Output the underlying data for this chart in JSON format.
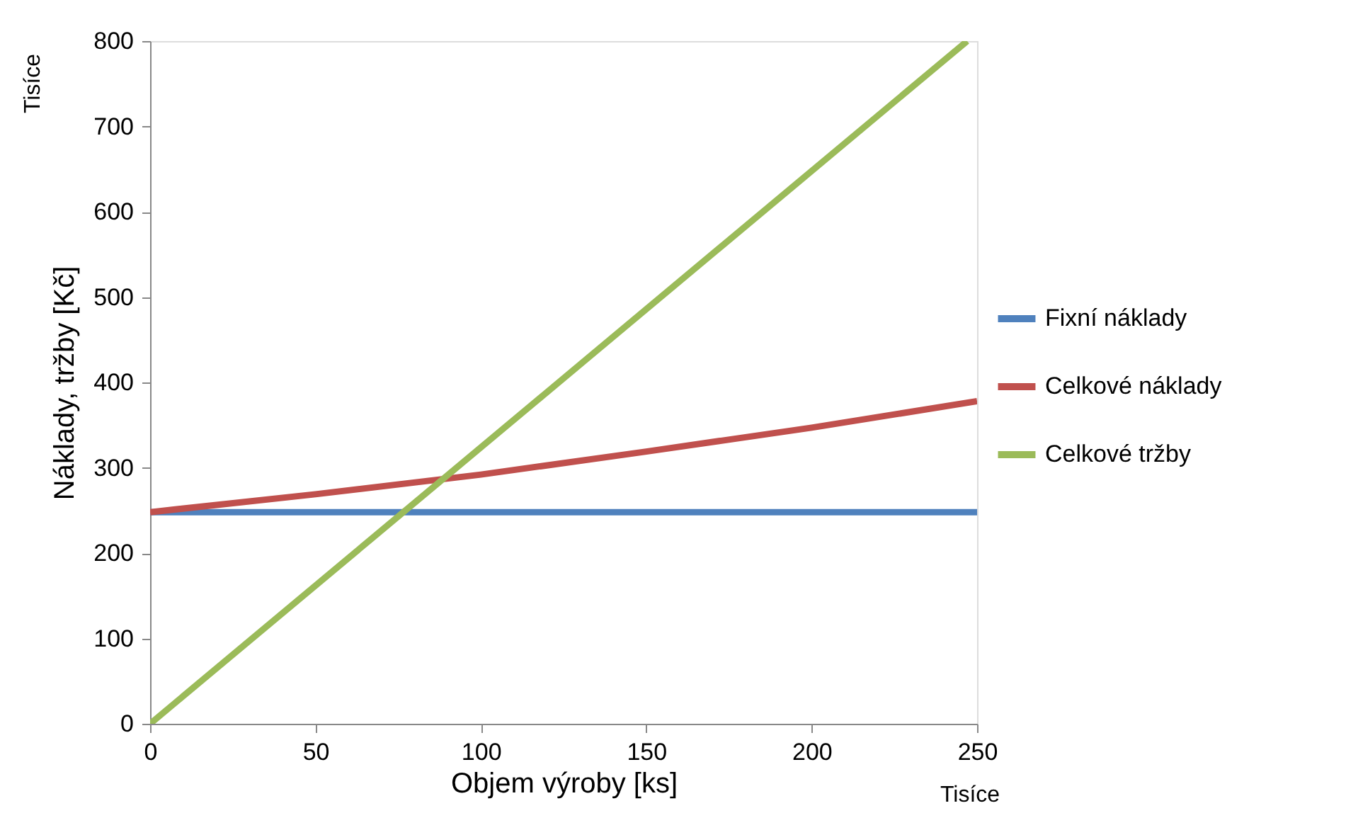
{
  "chart_data": {
    "type": "line",
    "xlabel": "Objem výroby [ks]",
    "ylabel": "Náklady, tržby [Kč]",
    "xlim": [
      0,
      250
    ],
    "xticks": [
      0,
      50,
      100,
      150,
      200,
      250
    ],
    "ylim": [
      0,
      800
    ],
    "yticks": [
      0,
      100,
      200,
      300,
      400,
      500,
      600,
      700,
      800
    ],
    "grid": false,
    "legend": "right",
    "marker": "none",
    "line_style": "solid",
    "annotations": [
      "Tisíce",
      "Tisíce"
    ],
    "series": [
      {
        "name": "Fixní náklady",
        "color": "#4f81bd",
        "x": [
          0,
          250
        ],
        "values": [
          248,
          248
        ]
      },
      {
        "name": "Celkové náklady",
        "color": "#c0504d",
        "x": [
          0,
          50,
          100,
          150,
          200,
          250
        ],
        "values": [
          248,
          269,
          292,
          319,
          347,
          378
        ]
      },
      {
        "name": "Celkové tržby",
        "color": "#9bbb59",
        "x": [
          0,
          247
        ],
        "values": [
          0,
          800
        ]
      }
    ]
  }
}
